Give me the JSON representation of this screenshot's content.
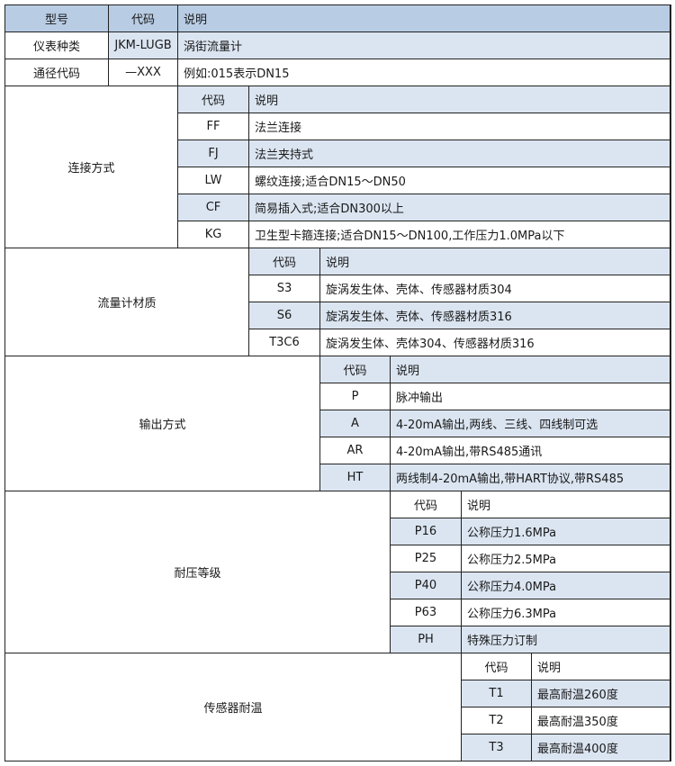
{
  "colors": {
    "header": "#b8cce4",
    "highlight": "#dbe5f1",
    "border": "#222222"
  },
  "top": {
    "header": [
      "型号",
      "代码",
      "说明"
    ],
    "rows": [
      {
        "name": "仪表种类",
        "code": "JKM-LUGB",
        "desc": "涡街流量计",
        "highlighted": true
      },
      {
        "name": "通径代码",
        "code": "—XXX",
        "desc": "例如:015表示DN15",
        "highlighted": false
      }
    ]
  },
  "sections": [
    {
      "label": "连接方式",
      "code_header": "代码",
      "desc_header": "说明",
      "header_highlighted": true,
      "rows": [
        {
          "code": "FF",
          "desc": "法兰连接",
          "highlighted": false
        },
        {
          "code": "FJ",
          "desc": "法兰夹持式",
          "highlighted": true
        },
        {
          "code": "LW",
          "desc": "螺纹连接;适合DN15～DN50",
          "highlighted": false
        },
        {
          "code": "CF",
          "desc": "简易插入式;适合DN300以上",
          "highlighted": true
        },
        {
          "code": "KG",
          "desc": "卫生型卡箍连接;适合DN15～DN100,工作压力1.0MPa以下",
          "highlighted": false
        }
      ]
    },
    {
      "label": "流量计材质",
      "code_header": "代码",
      "desc_header": "说明",
      "header_highlighted": true,
      "rows": [
        {
          "code": "S3",
          "desc": "旋涡发生体、壳体、传感器材质304",
          "highlighted": false
        },
        {
          "code": "S6",
          "desc": "旋涡发生体、壳体、传感器材质316",
          "highlighted": true
        },
        {
          "code": "T3C6",
          "desc": "旋涡发生体、壳体304、传感器材质316",
          "highlighted": false
        }
      ]
    },
    {
      "label": "输出方式",
      "code_header": "代码",
      "desc_header": "说明",
      "header_highlighted": true,
      "rows": [
        {
          "code": "P",
          "desc": "脉冲输出",
          "highlighted": false
        },
        {
          "code": "A",
          "desc": "4-20mA输出,两线、三线、四线制可选",
          "highlighted": true
        },
        {
          "code": "AR",
          "desc": "4-20mA输出,带RS485通讯",
          "highlighted": false
        },
        {
          "code": "HT",
          "desc": "两线制4-20mA输出,带HART协议,带RS485",
          "highlighted": true
        }
      ]
    },
    {
      "label": "耐压等级",
      "code_header": "代码",
      "desc_header": "说明",
      "header_highlighted": false,
      "rows": [
        {
          "code": "P16",
          "desc": "公称压力1.6MPa",
          "highlighted": true
        },
        {
          "code": "P25",
          "desc": "公称压力2.5MPa",
          "highlighted": false
        },
        {
          "code": "P40",
          "desc": "公称压力4.0MPa",
          "highlighted": true
        },
        {
          "code": "P63",
          "desc": "公称压力6.3MPa",
          "highlighted": false
        },
        {
          "code": "PH",
          "desc": "特殊压力订制",
          "highlighted": true
        }
      ]
    },
    {
      "label": "传感器耐温",
      "code_header": "代码",
      "desc_header": "说明",
      "header_highlighted": false,
      "rows": [
        {
          "code": "T1",
          "desc": "最高耐温260度",
          "highlighted": true
        },
        {
          "code": "T2",
          "desc": "最高耐温350度",
          "highlighted": false
        },
        {
          "code": "T3",
          "desc": "最高耐温400度",
          "highlighted": true
        }
      ]
    }
  ]
}
